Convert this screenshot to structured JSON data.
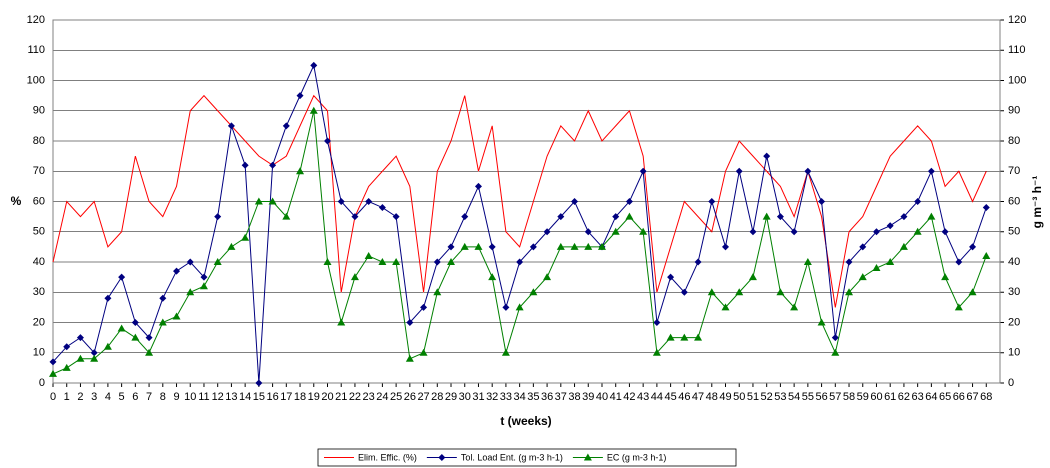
{
  "chart_data": {
    "type": "line",
    "xlabel": "t (weeks)",
    "ylabel": "%",
    "y2label": "g m⁻³ h⁻¹",
    "x": [
      0,
      1,
      2,
      3,
      4,
      5,
      6,
      7,
      8,
      9,
      10,
      11,
      12,
      13,
      14,
      15,
      16,
      17,
      18,
      19,
      20,
      21,
      22,
      23,
      24,
      25,
      26,
      27,
      28,
      29,
      30,
      31,
      32,
      33,
      34,
      35,
      36,
      37,
      38,
      39,
      40,
      41,
      42,
      43,
      44,
      45,
      46,
      47,
      48,
      49,
      50,
      51,
      52,
      53,
      54,
      55,
      56,
      57,
      58,
      59,
      60,
      61,
      62,
      63,
      64,
      65,
      66,
      67,
      68
    ],
    "xlim": [
      0,
      69
    ],
    "xticks": [
      0,
      1,
      2,
      3,
      4,
      5,
      6,
      7,
      8,
      9,
      10,
      11,
      12,
      13,
      14,
      15,
      16,
      17,
      18,
      19,
      20,
      21,
      22,
      23,
      24,
      25,
      26,
      27,
      28,
      29,
      30,
      31,
      32,
      33,
      34,
      35,
      36,
      37,
      38,
      39,
      40,
      41,
      42,
      43,
      44,
      45,
      46,
      47,
      48,
      49,
      50,
      51,
      52,
      53,
      54,
      55,
      56,
      57,
      58,
      59,
      60,
      61,
      62,
      63,
      64,
      65,
      66,
      67,
      68
    ],
    "ylim": [
      0,
      120
    ],
    "yticks": [
      0,
      10,
      20,
      30,
      40,
      50,
      60,
      70,
      80,
      90,
      100,
      110,
      120
    ],
    "y2lim": [
      0,
      120
    ],
    "y2ticks": [
      0,
      10,
      20,
      30,
      40,
      50,
      60,
      70,
      80,
      90,
      100,
      110,
      120
    ],
    "grid": true,
    "series": [
      {
        "name": "Elim. Effic. (%)",
        "color": "#ff0000",
        "marker": "none",
        "values": [
          40,
          60,
          55,
          60,
          45,
          50,
          75,
          60,
          55,
          65,
          90,
          95,
          90,
          85,
          80,
          75,
          72,
          75,
          85,
          95,
          90,
          30,
          55,
          65,
          70,
          75,
          65,
          30,
          70,
          80,
          95,
          70,
          85,
          50,
          45,
          60,
          75,
          85,
          80,
          90,
          80,
          85,
          90,
          75,
          30,
          45,
          60,
          55,
          50,
          70,
          80,
          75,
          70,
          65,
          55,
          70,
          55,
          25,
          50,
          55,
          65,
          75,
          80,
          85,
          80,
          65,
          70,
          60,
          70
        ]
      },
      {
        "name": "Tol. Load Ent. (g m-3 h-1)",
        "color": "#000080",
        "marker": "diamond",
        "axis": "y2",
        "values": [
          7,
          12,
          15,
          10,
          28,
          35,
          20,
          15,
          28,
          37,
          40,
          35,
          55,
          85,
          72,
          0,
          72,
          85,
          95,
          105,
          80,
          60,
          55,
          60,
          58,
          55,
          20,
          25,
          40,
          45,
          55,
          65,
          45,
          25,
          40,
          45,
          50,
          55,
          60,
          50,
          45,
          55,
          60,
          70,
          20,
          35,
          30,
          40,
          60,
          45,
          70,
          50,
          75,
          55,
          50,
          70,
          60,
          15,
          40,
          45,
          50,
          52,
          55,
          60,
          70,
          50,
          40,
          45,
          58
        ]
      },
      {
        "name": "EC (g m-3 h-1)",
        "color": "#008000",
        "marker": "triangle",
        "axis": "y2",
        "values": [
          3,
          5,
          8,
          8,
          12,
          18,
          15,
          10,
          20,
          22,
          30,
          32,
          40,
          45,
          48,
          60,
          60,
          55,
          70,
          90,
          40,
          20,
          35,
          42,
          40,
          40,
          8,
          10,
          30,
          40,
          45,
          45,
          35,
          10,
          25,
          30,
          35,
          45,
          45,
          45,
          45,
          50,
          55,
          50,
          10,
          15,
          15,
          15,
          30,
          25,
          30,
          35,
          55,
          30,
          25,
          40,
          20,
          10,
          30,
          35,
          38,
          40,
          45,
          50,
          55,
          35,
          25,
          30,
          42
        ]
      }
    ]
  }
}
